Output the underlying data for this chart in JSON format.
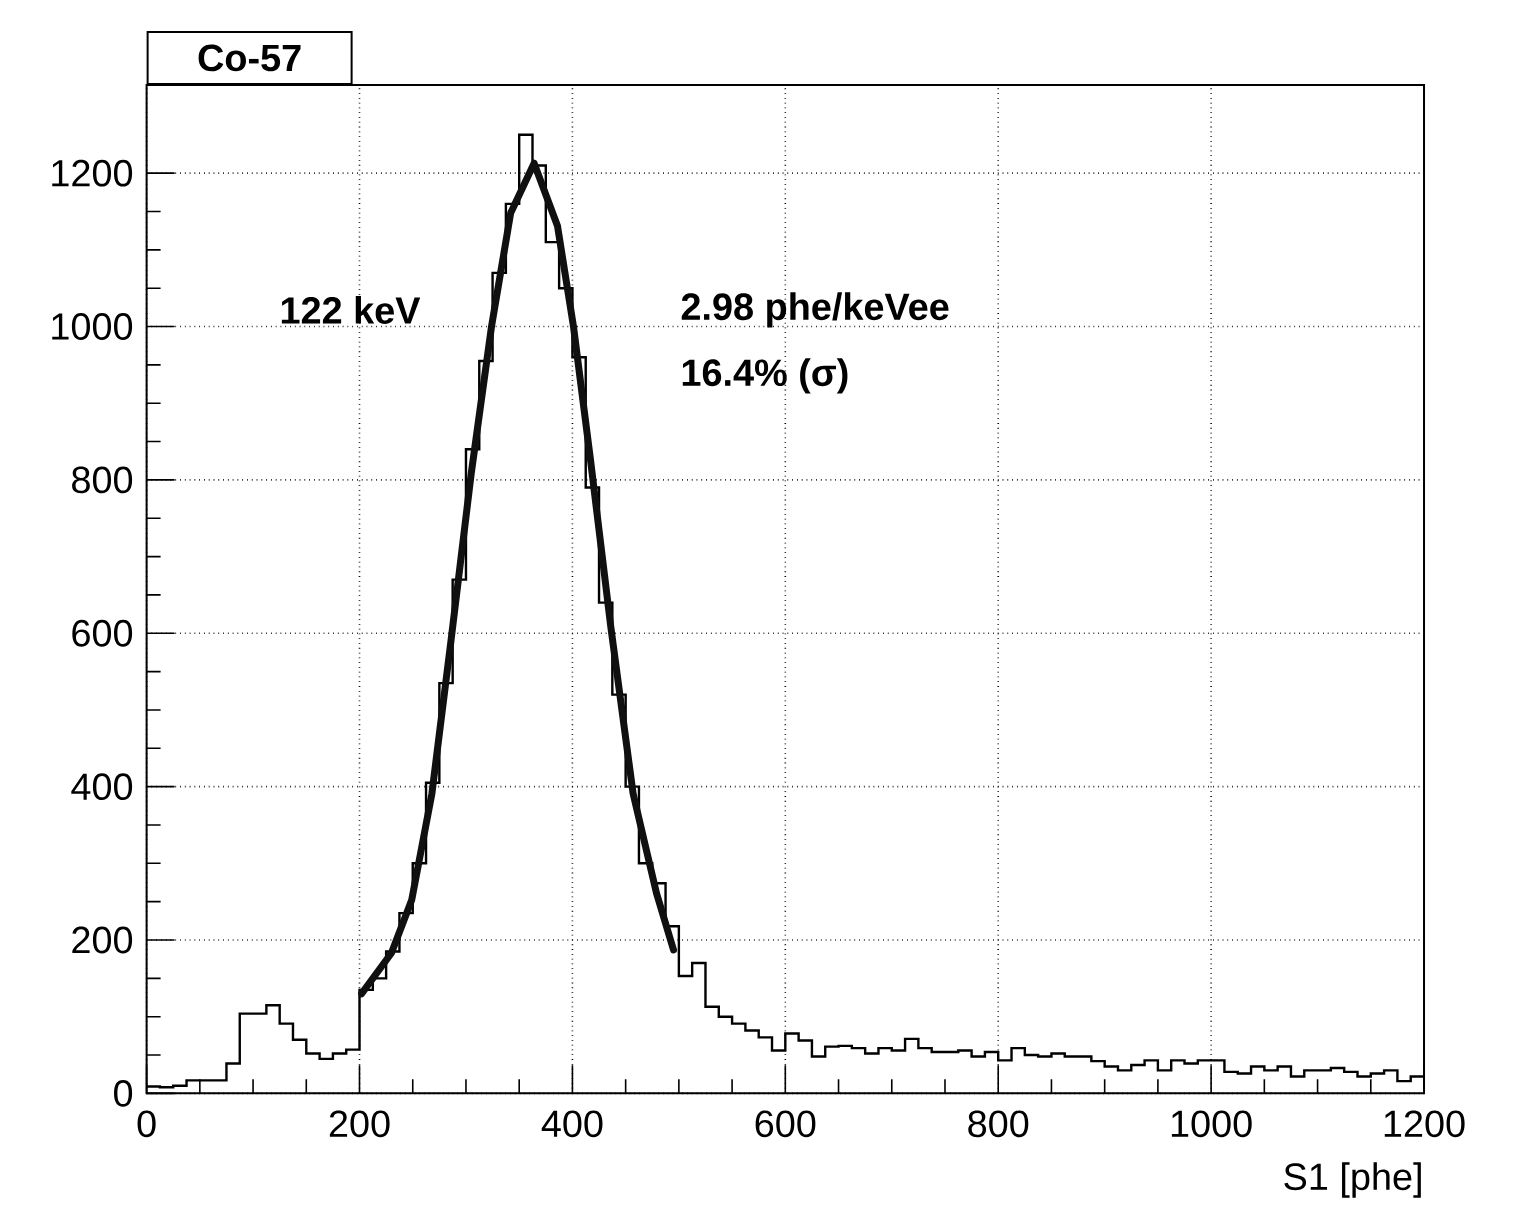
{
  "chart_data": {
    "type": "histogram",
    "title": "Co-57",
    "xlabel": "S1 [phe]",
    "annotations": [
      "122 keV",
      "2.98 phe/keVee",
      "16.4% (σ)"
    ],
    "xlim": [
      0,
      1200
    ],
    "ylim": [
      0,
      1315
    ],
    "xticks": [
      0,
      200,
      400,
      600,
      800,
      1000,
      1200
    ],
    "yticks": [
      0,
      200,
      400,
      600,
      800,
      1000,
      1200
    ],
    "grid": true,
    "series": [
      {
        "type": "histogram",
        "color": "#000000",
        "bins": [
          0,
          12.5,
          25,
          37.5,
          50,
          62.5,
          75,
          87.5,
          100,
          112.5,
          125,
          137.5,
          150,
          162.5,
          175,
          187.5,
          200,
          212.5,
          225,
          237.5,
          250,
          262.5,
          275,
          287.5,
          300,
          312.5,
          325,
          337.5,
          350,
          362.5,
          375,
          387.5,
          400,
          412.5,
          425,
          437.5,
          450,
          462.5,
          475,
          487.5,
          500,
          512.5,
          525,
          537.5,
          550,
          562.5,
          575,
          587.5,
          600,
          612.5,
          625,
          637.5,
          650,
          662.5,
          675,
          687.5,
          700,
          712.5,
          725,
          737.5,
          750,
          762.5,
          775,
          787.5,
          800,
          812.5,
          825,
          837.5,
          850,
          862.5,
          875,
          887.5,
          900,
          912.5,
          925,
          937.5,
          950,
          962.5,
          975,
          987.5,
          1000,
          1012.5,
          1025,
          1037.5,
          1050,
          1062.5,
          1075,
          1087.5,
          1100,
          1112.5,
          1125,
          1137.5,
          1150,
          1162.5,
          1175,
          1187.5,
          1200
        ],
        "values": [
          9,
          8,
          10,
          17,
          17,
          17,
          39,
          104,
          104,
          115,
          91,
          70,
          52,
          45,
          52,
          57,
          135,
          150,
          185,
          235,
          300,
          405,
          535,
          670,
          840,
          955,
          1070,
          1160,
          1250,
          1210,
          1110,
          1050,
          960,
          790,
          640,
          520,
          400,
          300,
          274,
          218,
          153,
          170,
          113,
          100,
          91,
          82,
          73,
          56,
          78,
          69,
          48,
          61,
          62,
          59,
          52,
          59,
          56,
          71,
          59,
          54,
          54,
          56,
          48,
          54,
          43,
          59,
          50,
          48,
          52,
          48,
          48,
          42,
          35,
          30,
          37,
          43,
          30,
          43,
          39,
          43,
          43,
          28,
          26,
          35,
          30,
          35,
          22,
          30,
          30,
          33,
          28,
          22,
          26,
          30,
          16,
          22
        ]
      },
      {
        "type": "line",
        "color": "#101010",
        "x": [
          202,
          230,
          249,
          268,
          286,
          305,
          324,
          342,
          364,
          386,
          401,
          417,
          436,
          457,
          479,
          495
        ],
        "values": [
          130,
          183,
          252,
          391,
          591,
          809,
          1000,
          1148,
          1213,
          1131,
          1000,
          826,
          609,
          391,
          261,
          187
        ]
      }
    ]
  }
}
